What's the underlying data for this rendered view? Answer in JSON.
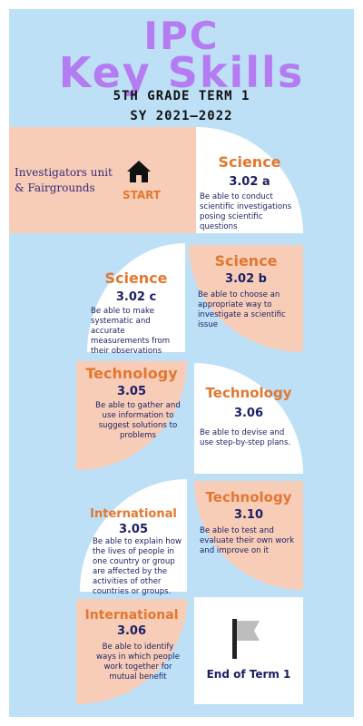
{
  "header": {
    "title_line1": "IPC",
    "title_line2": "Key Skills",
    "subtitle_line1": "5TH GRADE TERM 1",
    "subtitle_line2": "SY 2021–2022"
  },
  "start": {
    "unit": "Investigators unit & Fairgrounds",
    "label": "START",
    "icon": "home-icon"
  },
  "skills": [
    {
      "subject": "Science",
      "code": "3.02 a",
      "description": "Be able to conduct scientific investigations posing scientific questions"
    },
    {
      "subject": "Science",
      "code": "3.02 b",
      "description": "Be able to choose an appropriate way to investigate a scientific issue"
    },
    {
      "subject": "Science",
      "code": "3.02 c",
      "description": "Be able to make systematic and accurate measurements from their observations"
    },
    {
      "subject": "Technology",
      "code": "3.05",
      "description": "Be able to gather and use information to suggest solutions to problems"
    },
    {
      "subject": "Technology",
      "code": "3.06",
      "description": "Be able to devise and use step-by-step plans."
    },
    {
      "subject": "Technology",
      "code": "3.10",
      "description": "Be able to test and evaluate their own work and improve on it"
    },
    {
      "subject": "International",
      "code": "3.05",
      "description": "Be able to explain how the lives of people in one country or group are affected by the activities of other countries or groups."
    },
    {
      "subject": "International",
      "code": "3.06",
      "description": "Be able to identify ways in which people work together for mutual benefit"
    }
  ],
  "end": {
    "label": "End of Term 1",
    "icon": "flag-icon"
  },
  "colors": {
    "background": "#bde0f6",
    "title": "#b57cf2",
    "peach": "#f8cdb8",
    "heading": "#e3772f",
    "text": "#1a1f63"
  }
}
